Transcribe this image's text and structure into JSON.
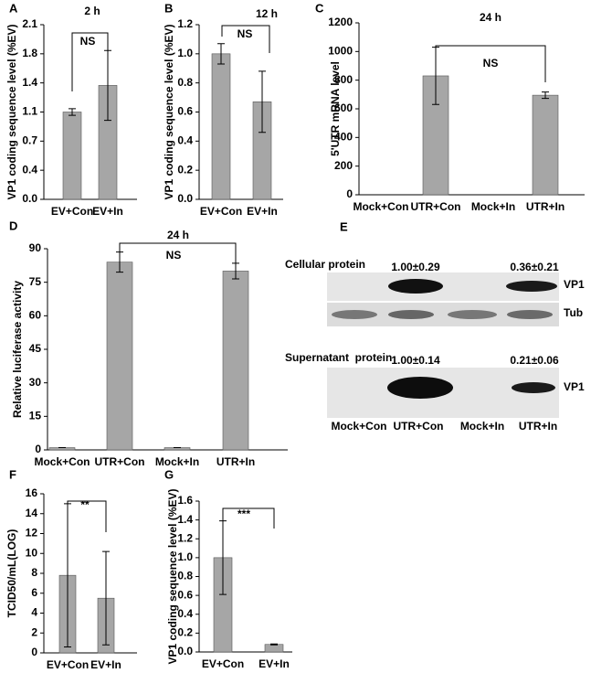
{
  "chart_data": [
    {
      "type": "bar",
      "panel": "A",
      "title": "2 h",
      "annotation": "NS",
      "ylabel": "VP1 coding sequence level (%EV)",
      "categories": [
        "EV+Con",
        "EV+In"
      ],
      "values": [
        1.05,
        1.37
      ],
      "errors": [
        0.04,
        0.42
      ],
      "color": "#a6a6a6",
      "ylim": [
        0,
        2.1
      ],
      "yticks": [
        {
          "value": 0,
          "label": "0.0"
        },
        {
          "value": 0.35,
          "label": "0.4"
        },
        {
          "value": 0.7,
          "label": "0.7"
        },
        {
          "value": 1.05,
          "label": "1.1"
        },
        {
          "value": 1.4,
          "label": "1.4"
        },
        {
          "value": 1.75,
          "label": "1.8"
        },
        {
          "value": 2.1,
          "label": "2.1"
        }
      ]
    },
    {
      "type": "bar",
      "panel": "B",
      "title": "12 h",
      "annotation": "NS",
      "ylabel": "VP1 coding sequence level (%EV)",
      "categories": [
        "EV+Con",
        "EV+In"
      ],
      "values": [
        1.0,
        0.67
      ],
      "errors": [
        0.07,
        0.21
      ],
      "color": "#a6a6a6",
      "ylim": [
        0,
        1.2
      ],
      "yticks": [
        {
          "value": 0,
          "label": "0.0"
        },
        0.2,
        0.4,
        0.6,
        0.8,
        {
          "value": 1,
          "label": "1.0"
        },
        1.2
      ]
    },
    {
      "type": "bar",
      "panel": "C",
      "title": "24 h",
      "annotation": "NS",
      "ylabel": "5'UTR mRNA level",
      "categories": [
        "Mock+Con",
        "UTR+Con",
        "Mock+In",
        "UTR+In"
      ],
      "values": [
        0,
        830,
        0,
        695
      ],
      "errors": [
        0,
        200,
        0,
        22
      ],
      "color": "#a6a6a6",
      "ylim": [
        0,
        1200
      ],
      "yticks": [
        0,
        200,
        400,
        600,
        800,
        1000,
        1200
      ]
    },
    {
      "type": "bar",
      "panel": "D",
      "title": "24 h",
      "annotation": "NS",
      "ylabel": "Relative luciferase activity",
      "categories": [
        "Mock+Con",
        "UTR+Con",
        "Mock+In",
        "UTR+In"
      ],
      "values": [
        1,
        84,
        1,
        80
      ],
      "errors": [
        0,
        4.5,
        0,
        3.5
      ],
      "color": "#a6a6a6",
      "ylim": [
        0,
        90
      ],
      "yticks": [
        0,
        15,
        30,
        45,
        60,
        75,
        90
      ]
    },
    {
      "type": "bar",
      "panel": "F",
      "annotation": "**",
      "ylabel": "TCID50/mL(LOG)",
      "categories": [
        "EV+Con",
        "EV+In"
      ],
      "values": [
        7.8,
        5.5
      ],
      "errors": [
        7.2,
        4.7
      ],
      "color": "#a6a6a6",
      "ylim": [
        0,
        16
      ],
      "yticks": [
        0,
        2,
        4,
        6,
        8,
        10,
        12,
        14,
        16
      ]
    },
    {
      "type": "bar",
      "panel": "G",
      "annotation": "***",
      "ylabel": "VP1 coding sequence level (%EV)",
      "categories": [
        "EV+Con",
        "EV+In"
      ],
      "values": [
        1.0,
        0.08
      ],
      "errors": [
        0.39,
        0.005
      ],
      "color": "#a6a6a6",
      "ylim": [
        0,
        1.6
      ],
      "yticks": [
        {
          "value": 0,
          "label": "0.0"
        },
        0.2,
        0.4,
        0.6,
        0.8,
        {
          "value": 1,
          "label": "1.0"
        },
        1.2,
        1.4,
        1.6
      ]
    }
  ],
  "blot": {
    "panel": "E",
    "sections": [
      {
        "title": "Cellular protein",
        "quantities": [
          "1.00±0.29",
          "0.36±0.21"
        ],
        "rows": [
          "VP1",
          "Tub"
        ]
      },
      {
        "title": "Supernatant  protein",
        "quantities": [
          "1.00±0.14",
          "0.21±0.06"
        ],
        "rows": [
          "VP1"
        ]
      }
    ],
    "lanes": [
      "Mock+Con",
      "UTR+Con",
      "Mock+In",
      "UTR+In"
    ]
  }
}
